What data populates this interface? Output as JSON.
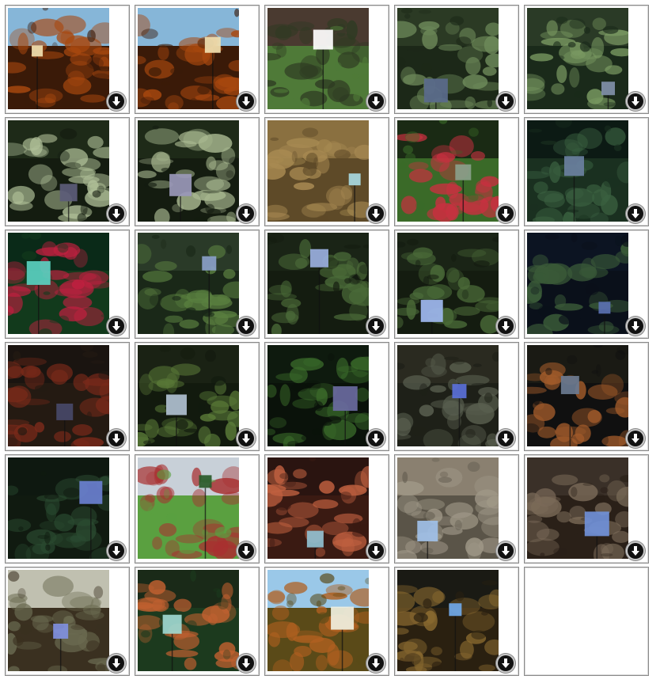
{
  "gallery": {
    "images": [
      {
        "scene": "autumn-woodland-field",
        "sky": "#86b6d8",
        "ground": "#3a1a08",
        "mid": "#a8480f",
        "accent": "#f0e0b0"
      },
      {
        "scene": "autumn-woodland-field",
        "sky": "#86b6d8",
        "ground": "#3a1a08",
        "mid": "#a8480f",
        "accent": "#f0e0b0"
      },
      {
        "scene": "park-lawn-trees",
        "sky": "#4a3a30",
        "ground": "#4f7a38",
        "mid": "#2e3a22",
        "accent": "#ffffff"
      },
      {
        "scene": "palm-grass-foliage",
        "sky": "#2b3a24",
        "ground": "#1c2818",
        "mid": "#6e8a5a",
        "accent": "#5a6a8c"
      },
      {
        "scene": "cycad-fronds",
        "sky": "#2a3a26",
        "ground": "#1a2a1a",
        "mid": "#7a9a62",
        "accent": "#8090a8"
      },
      {
        "scene": "fern-plants",
        "sky": "#1e2a18",
        "ground": "#141c10",
        "mid": "#b0c098",
        "accent": "#5c5c78"
      },
      {
        "scene": "fern-plants",
        "sky": "#1e2a18",
        "ground": "#141c10",
        "mid": "#a8b890",
        "accent": "#9a98b8"
      },
      {
        "scene": "tree-bark",
        "sky": "#8a7040",
        "ground": "#5e4a28",
        "mid": "#a88a52",
        "accent": "#a8d8e0"
      },
      {
        "scene": "red-flower-shrub",
        "sky": "#1a2a14",
        "ground": "#3a6a28",
        "mid": "#c83040",
        "accent": "#8aa08a"
      },
      {
        "scene": "dark-leaves",
        "sky": "#0c1a14",
        "ground": "#1a3020",
        "mid": "#3a6040",
        "accent": "#6a80a0"
      },
      {
        "scene": "red-lily",
        "sky": "#0a2a18",
        "ground": "#123a1c",
        "mid": "#c02040",
        "accent": "#5ad0c0"
      },
      {
        "scene": "rubber-plant",
        "sky": "#2a3a28",
        "ground": "#1a2818",
        "mid": "#5a8040",
        "accent": "#8aa0c8"
      },
      {
        "scene": "camellia-shrub",
        "sky": "#1a2416",
        "ground": "#141c10",
        "mid": "#4a6a38",
        "accent": "#9ab0e0"
      },
      {
        "scene": "camellia-shrub",
        "sky": "#1a2416",
        "ground": "#141c10",
        "mid": "#4a6a38",
        "accent": "#a0b8f0"
      },
      {
        "scene": "dark-shrub",
        "sky": "#0c1422",
        "ground": "#0a101a",
        "mid": "#3a5a38",
        "accent": "#5a70b0"
      },
      {
        "scene": "red-leaf-bush",
        "sky": "#1a1410",
        "ground": "#241a12",
        "mid": "#7a2a1a",
        "accent": "#484868"
      },
      {
        "scene": "holly-bush",
        "sky": "#1a2214",
        "ground": "#121a0e",
        "mid": "#5a7a38",
        "accent": "#b0c0d0"
      },
      {
        "scene": "fern-fronds",
        "sky": "#0e1a0e",
        "ground": "#0a120a",
        "mid": "#3a6a2a",
        "accent": "#6a6aa0"
      },
      {
        "scene": "undergrowth",
        "sky": "#2a2a20",
        "ground": "#1e2018",
        "mid": "#5a6050",
        "accent": "#5a70d8"
      },
      {
        "scene": "banksia-flower",
        "sky": "#1a1a14",
        "ground": "#101010",
        "mid": "#a05a2a",
        "accent": "#6a7a90"
      },
      {
        "scene": "dark-shrub-tripod",
        "sky": "#0e1810",
        "ground": "#101a10",
        "mid": "#2a4a30",
        "accent": "#6a80d0"
      },
      {
        "scene": "red-maple-tree",
        "sky": "#c8d0d8",
        "ground": "#5aa040",
        "mid": "#a83030",
        "accent": "#2a5a2a"
      },
      {
        "scene": "autumn-leaves-close",
        "sky": "#2a1410",
        "ground": "#3a1a12",
        "mid": "#c06040",
        "accent": "#90c0d0"
      },
      {
        "scene": "rock-face",
        "sky": "#8a8070",
        "ground": "#5a5448",
        "mid": "#a09888",
        "accent": "#a0c0e8"
      },
      {
        "scene": "woodland-floor",
        "sky": "#3a3028",
        "ground": "#2a2018",
        "mid": "#7a6a58",
        "accent": "#7090d8"
      },
      {
        "scene": "bare-woodland",
        "sky": "#c0c0b0",
        "ground": "#3a3020",
        "mid": "#6a6a50",
        "accent": "#8090e0"
      },
      {
        "scene": "orange-leaf-shrub",
        "sky": "#1a2a18",
        "ground": "#1c3a1e",
        "mid": "#c06030",
        "accent": "#a0d8d0"
      },
      {
        "scene": "autumn-lawn",
        "sky": "#9ac8e8",
        "ground": "#5a4a18",
        "mid": "#b06020",
        "accent": "#f0f0e0"
      },
      {
        "scene": "leaf-litter",
        "sky": "#1a1a14",
        "ground": "#2a2010",
        "mid": "#8a6a30",
        "accent": "#70a8e8"
      }
    ],
    "download_icon": "download-arrow-icon"
  }
}
